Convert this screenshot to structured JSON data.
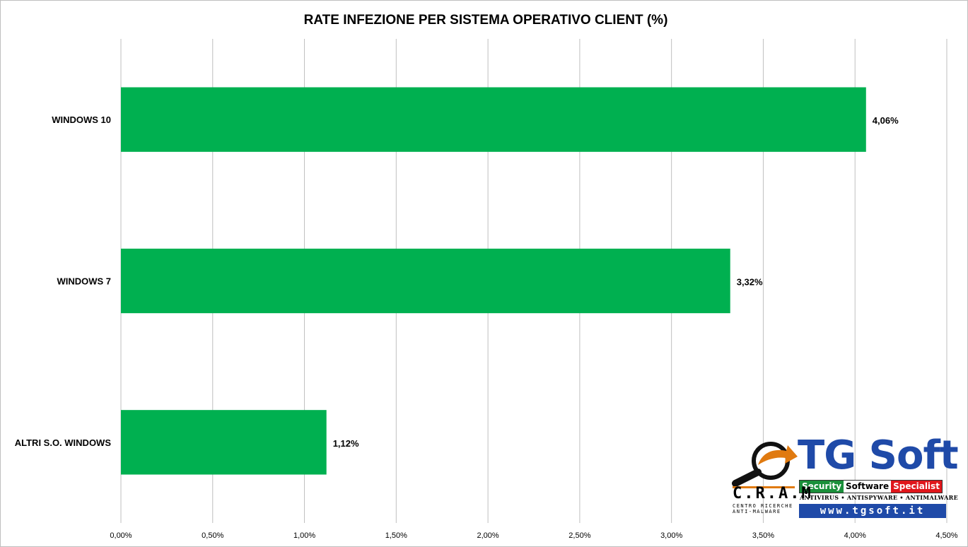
{
  "chart_data": {
    "type": "bar",
    "orientation": "horizontal",
    "title": "RATE INFEZIONE PER SISTEMA OPERATIVO CLIENT (%)",
    "categories": [
      "WINDOWS 10",
      "WINDOWS 7",
      "ALTRI S.O. WINDOWS"
    ],
    "values": [
      4.06,
      3.32,
      1.12
    ],
    "value_labels": [
      "4,06%",
      "3,32%",
      "1,12%"
    ],
    "xlim": [
      0,
      4.5
    ],
    "x_ticks": [
      0,
      0.5,
      1,
      1.5,
      2,
      2.5,
      3,
      3.5,
      4,
      4.5
    ],
    "x_tick_labels": [
      "0,00%",
      "0,50%",
      "1,00%",
      "1,50%",
      "2,00%",
      "2,50%",
      "3,00%",
      "3,50%",
      "4,00%",
      "4,50%"
    ],
    "grid": "vertical",
    "legend": "none",
    "bar_color": "#00b050",
    "grid_color": "#bfbfbf"
  },
  "logo": {
    "brand": "TG Soft",
    "strip": [
      "Security",
      "Software",
      "Specialist"
    ],
    "tagline": "ANTIVIRUS • ANTISPYWARE • ANTIMALWARE",
    "website": "www.tgsoft.it",
    "cram": "C.R.A.M",
    "cram_sub": "CENTRO RICERCHE ANTI-MALWARE",
    "brand_color": "#1f4aa8",
    "accent_color": "#e07a10"
  }
}
